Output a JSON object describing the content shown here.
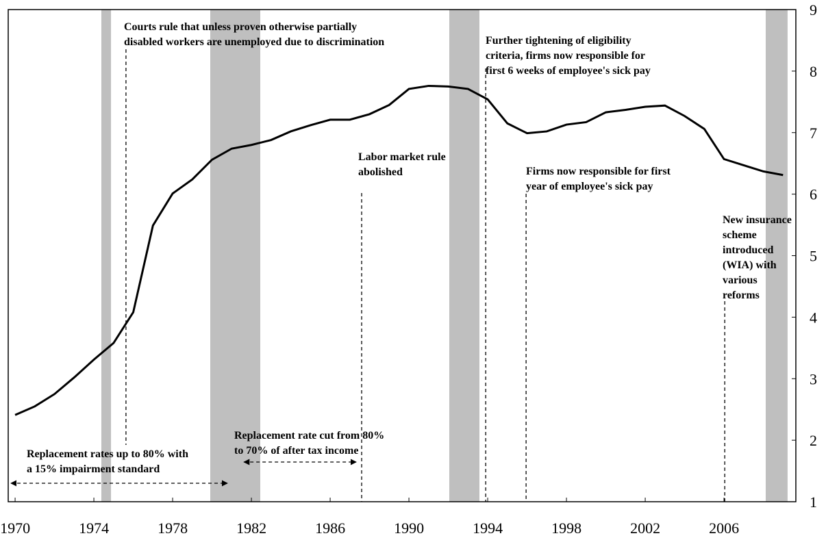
{
  "chart_data": {
    "type": "line",
    "x": [
      1970,
      1971,
      1972,
      1973,
      1974,
      1975,
      1976,
      1977,
      1978,
      1979,
      1980,
      1981,
      1982,
      1983,
      1984,
      1985,
      1986,
      1987,
      1988,
      1989,
      1990,
      1991,
      1992,
      1993,
      1994,
      1995,
      1996,
      1997,
      1998,
      1999,
      2000,
      2001,
      2002,
      2003,
      2004,
      2005,
      2006,
      2007,
      2008,
      2009
    ],
    "values": [
      2.41,
      2.55,
      2.75,
      3.02,
      3.31,
      3.58,
      4.08,
      5.49,
      6.01,
      6.24,
      6.56,
      6.74,
      6.8,
      6.88,
      7.02,
      7.12,
      7.21,
      7.21,
      7.3,
      7.45,
      7.71,
      7.76,
      7.75,
      7.71,
      7.54,
      7.15,
      6.99,
      7.02,
      7.13,
      7.17,
      7.33,
      7.37,
      7.42,
      7.44,
      7.27,
      7.06,
      6.57,
      6.47,
      6.37,
      6.31
    ],
    "color": "#000000",
    "xlim": [
      1969.65,
      2009.65
    ],
    "xticks": [
      1970,
      1974,
      1978,
      1982,
      1986,
      1990,
      1994,
      1998,
      2002,
      2006
    ],
    "ylim": [
      1,
      9
    ],
    "yticks": [
      1,
      2,
      3,
      4,
      5,
      6,
      7,
      8,
      9
    ],
    "shaded_periods": [
      [
        1974.38,
        1974.87
      ],
      [
        1979.91,
        1982.45
      ],
      [
        1992.05,
        1993.58
      ],
      [
        2008.12,
        2009.23
      ]
    ],
    "shade_color": "#bfbfbf",
    "annotations": [
      {
        "text": [
          "Courts rule that unless proven otherwise partially",
          "disabled workers are unemployed due to discrimination"
        ],
        "x": 1975.63
      },
      {
        "text": [
          "Labor market rule",
          "abolished"
        ],
        "x": 1987.6
      },
      {
        "text": [
          "Further tightening of eligibility",
          "criteria, firms now responsible for",
          "first 6 weeks of employee's sick pay"
        ],
        "x": 1993.9
      },
      {
        "text": [
          "Firms now responsible for first",
          "year of employee's sick pay"
        ],
        "x": 1995.95
      },
      {
        "text": [
          "New insurance",
          "scheme",
          "introduced",
          "(WIA) with",
          "various",
          "reforms"
        ],
        "x": 2006.04
      }
    ],
    "ranges": [
      {
        "text": [
          "Replacement rates up to 80% with",
          "a 15% impairment  standard"
        ],
        "from": 1969.79,
        "to": 1980.78
      },
      {
        "text": [
          "Replacement rate cut from 80%",
          "to 70% of after tax income"
        ],
        "from": 1981.62,
        "to": 1987.32
      }
    ]
  }
}
